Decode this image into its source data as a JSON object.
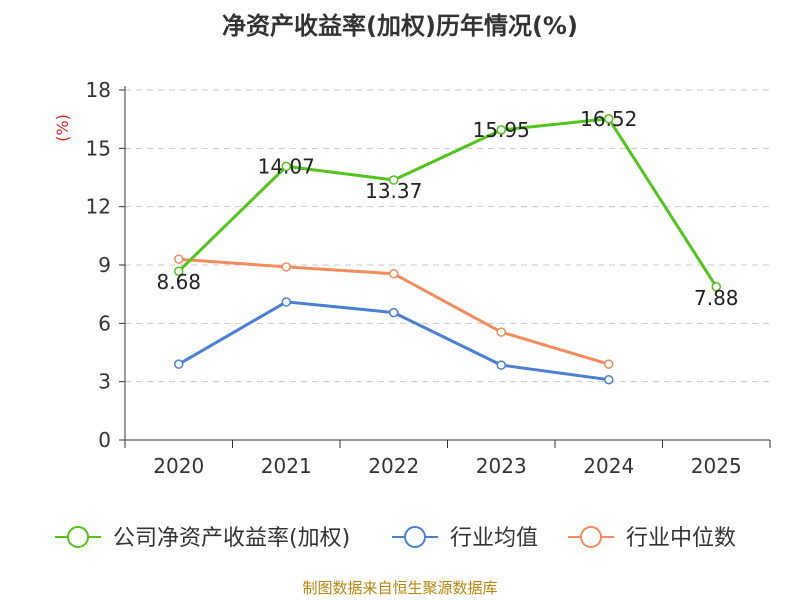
{
  "chart_data": {
    "type": "line",
    "title": "净资产收益率(加权)历年情况(%)",
    "ylabel": "(%)",
    "xlabel": "",
    "categories": [
      "2020",
      "2021",
      "2022",
      "2023",
      "2024",
      "2025"
    ],
    "yticks": [
      "0",
      "3",
      "6",
      "9",
      "12",
      "15",
      "18"
    ],
    "ylim": [
      0,
      18
    ],
    "grid": true,
    "legend_position": "bottom",
    "series": [
      {
        "name": "公司净资产收益率(加权)",
        "color": "#52c41a",
        "values": [
          8.68,
          14.07,
          13.37,
          15.95,
          16.52,
          7.88
        ],
        "labels": [
          "8.68",
          "14.07",
          "13.37",
          "15.95",
          "16.52",
          "7.88"
        ]
      },
      {
        "name": "行业均值",
        "color": "#4a7fd4",
        "values": [
          3.9,
          7.1,
          6.55,
          3.85,
          3.1,
          null
        ]
      },
      {
        "name": "行业中位数",
        "color": "#f28c5c",
        "values": [
          9.3,
          8.9,
          8.55,
          5.55,
          3.9,
          null
        ]
      }
    ],
    "source": "制图数据来自恒生聚源数据库"
  }
}
